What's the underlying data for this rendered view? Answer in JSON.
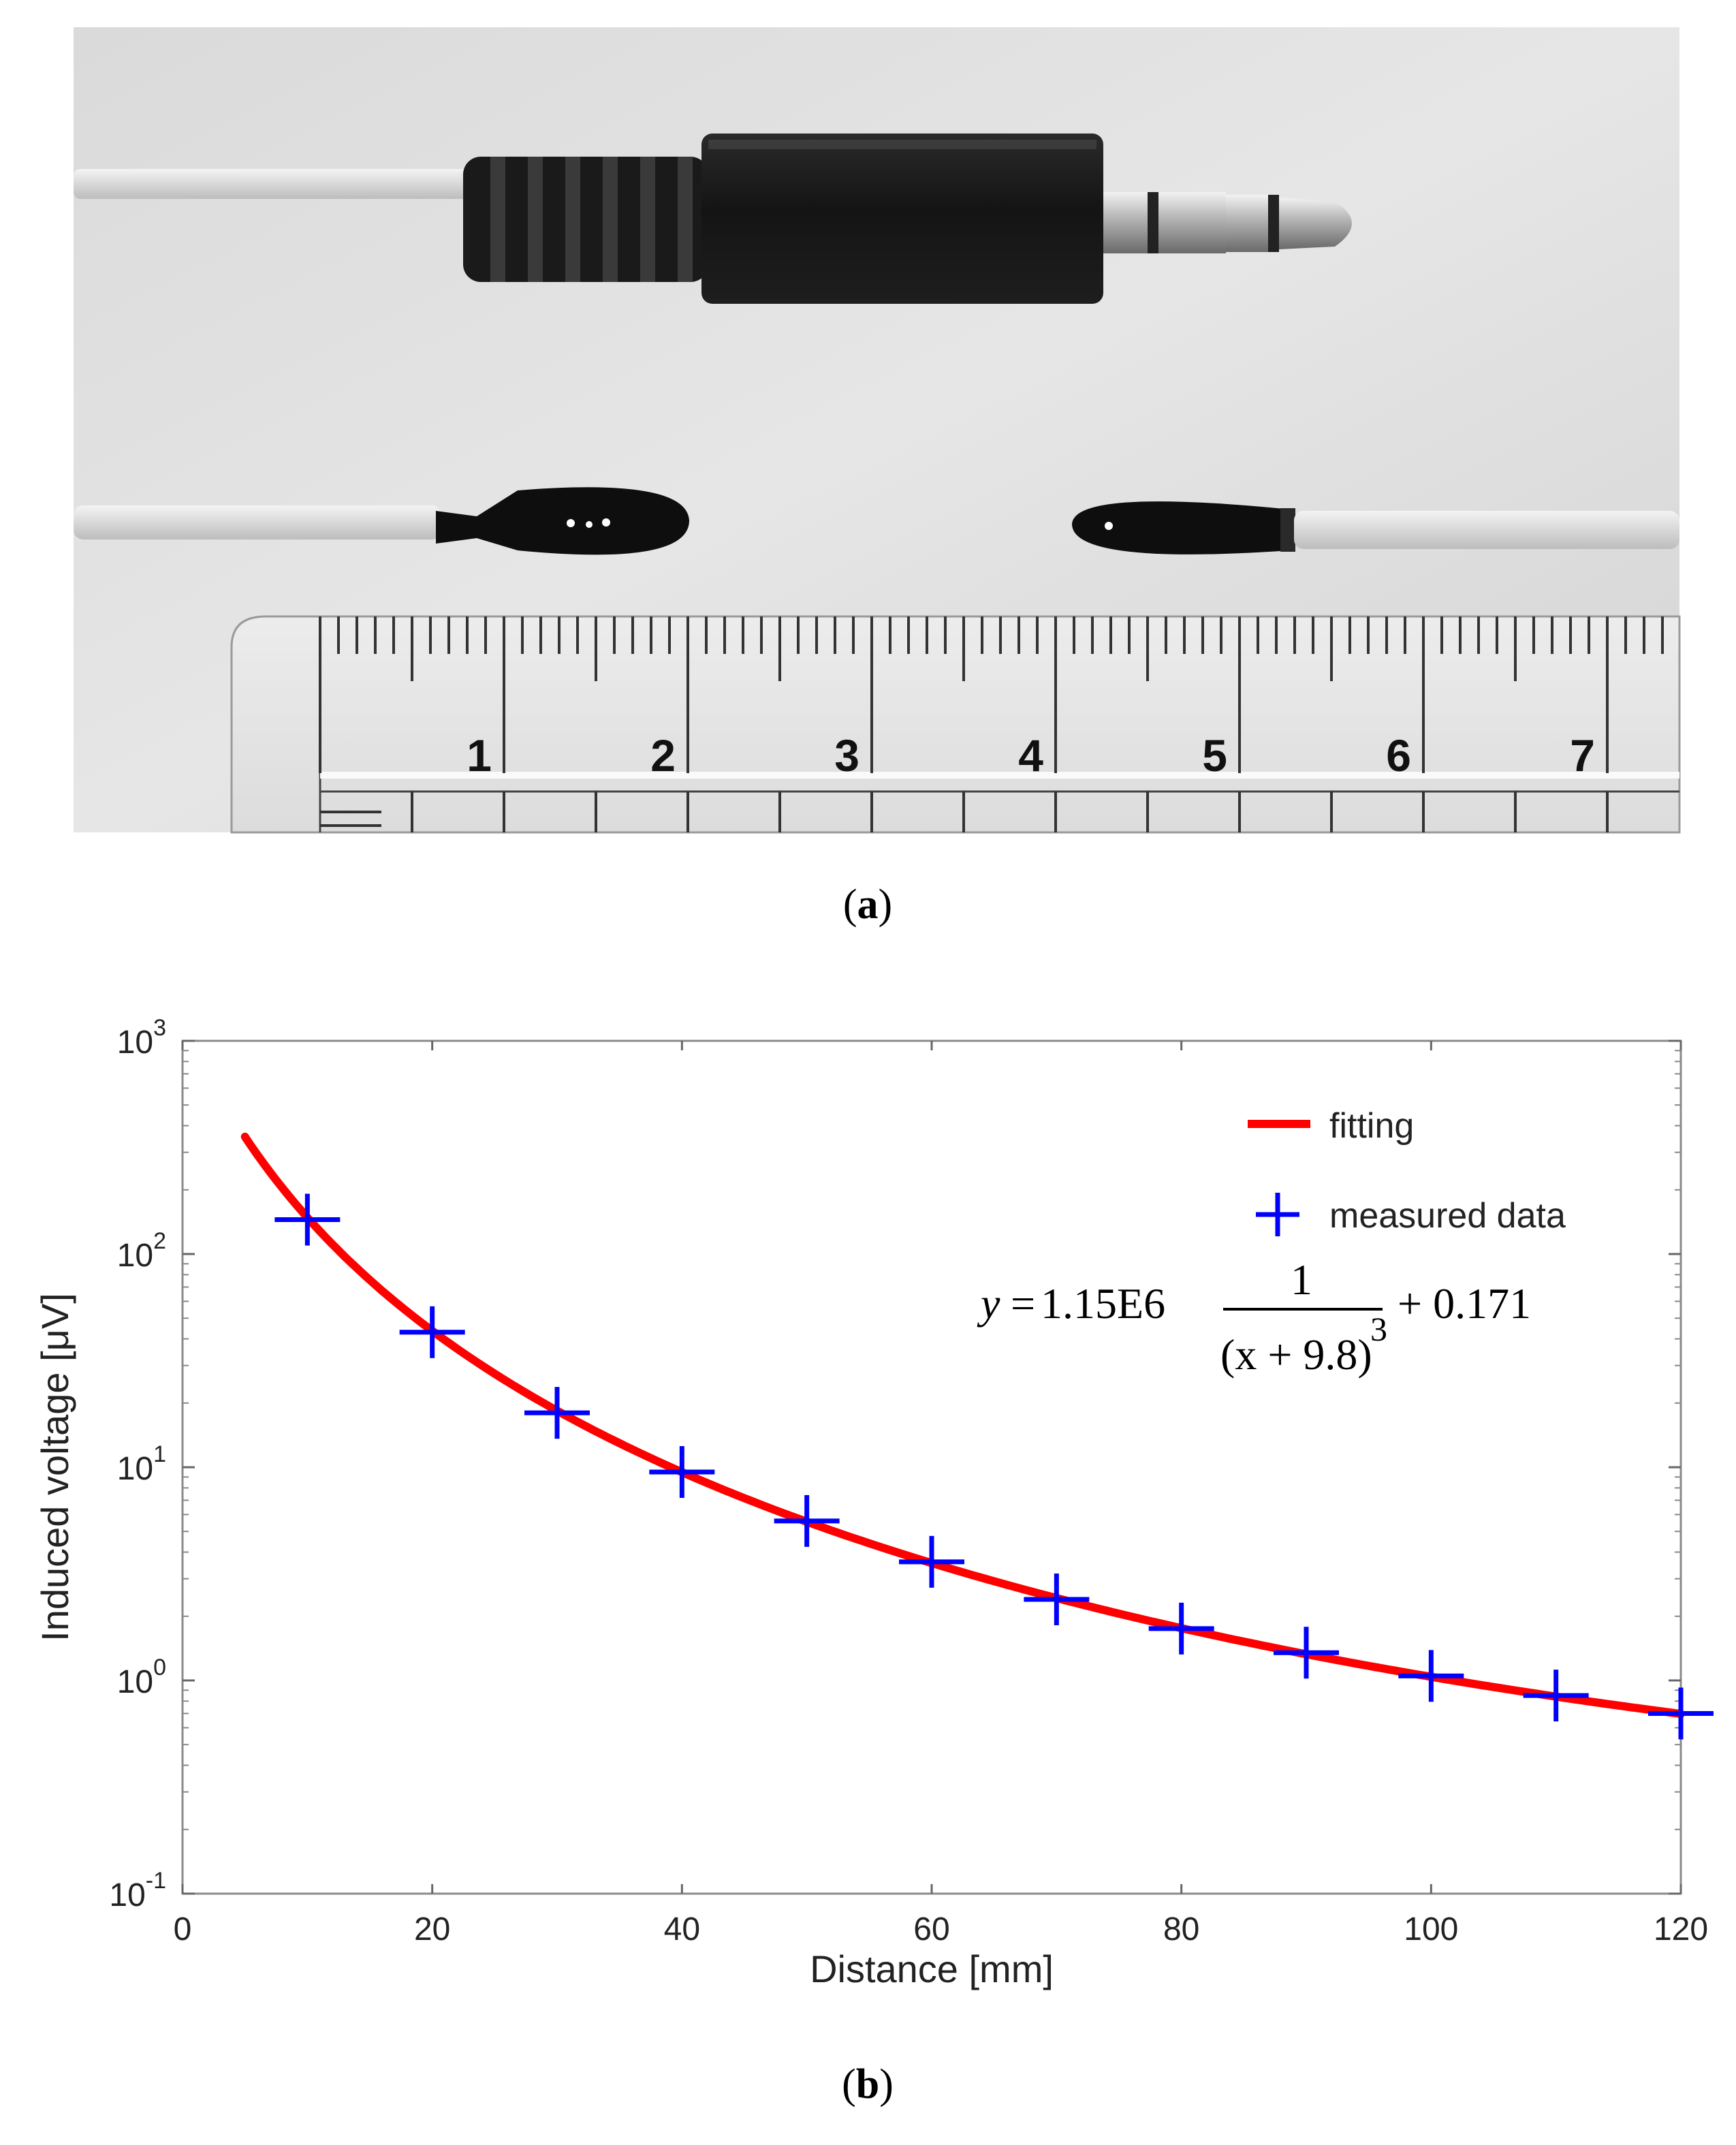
{
  "panel_a": {
    "caption": "a",
    "ruler_numbers": [
      "1",
      "2",
      "3",
      "4",
      "5",
      "6",
      "7"
    ]
  },
  "panel_b": {
    "caption": "b",
    "equation": {
      "lhs": "y",
      "coefficient": "1.15E6",
      "numerator": "1",
      "denominator": "(x + 9.8)",
      "exponent": "3",
      "constant": "+ 0.171"
    }
  },
  "chart_data": {
    "type": "line",
    "xlabel": "Distance [mm]",
    "ylabel": "Induced voltage [μV]",
    "xlim": [
      0,
      120
    ],
    "ylim": [
      0.1,
      1000
    ],
    "yscale": "log",
    "x_ticks": [
      0,
      20,
      40,
      60,
      80,
      100,
      120
    ],
    "y_ticks": [
      {
        "base": "10",
        "exp": "-1",
        "value": 0.1
      },
      {
        "base": "10",
        "exp": "0",
        "value": 1
      },
      {
        "base": "10",
        "exp": "1",
        "value": 10
      },
      {
        "base": "10",
        "exp": "2",
        "value": 100
      },
      {
        "base": "10",
        "exp": "3",
        "value": 1000
      }
    ],
    "legend_position": "top-right",
    "grid": false,
    "series": [
      {
        "name": "fitting",
        "kind": "line",
        "color": "#ff0000",
        "fit": {
          "a": 1150000,
          "b": 9.8,
          "c": 0.171,
          "x_range": [
            5,
            120
          ]
        }
      },
      {
        "name": "measured data",
        "kind": "marker",
        "color": "#0000ff",
        "x": [
          10,
          20,
          30,
          40,
          50,
          60,
          70,
          80,
          90,
          100,
          110,
          120
        ],
        "y": [
          145,
          43,
          18,
          9.5,
          5.6,
          3.6,
          2.4,
          1.75,
          1.35,
          1.05,
          0.85,
          0.7
        ]
      }
    ]
  }
}
